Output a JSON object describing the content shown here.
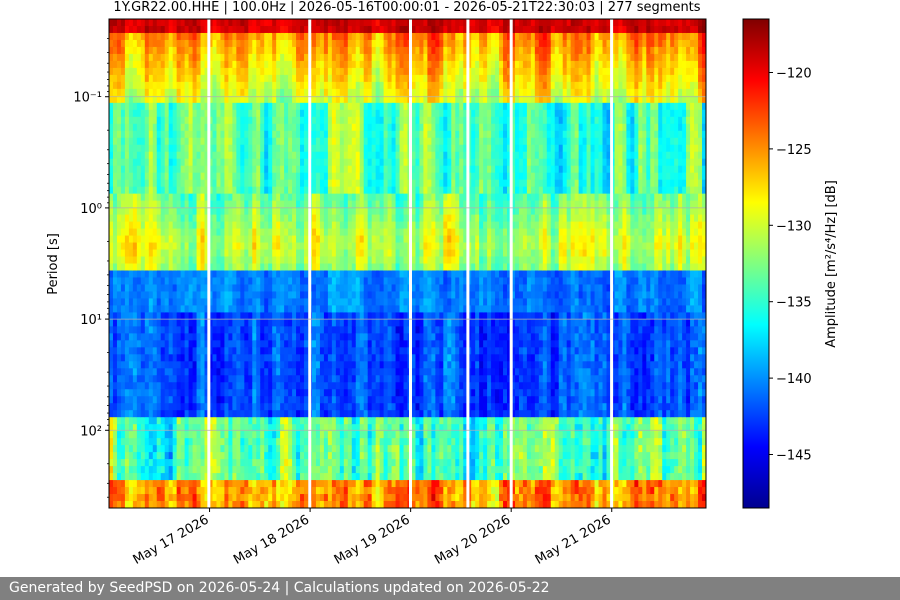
{
  "chart_data": {
    "type": "heatmap",
    "title": "1Y.GR22.00.HHE | 100.0Hz | 2026-05-16T00:00:01 - 2026-05-21T22:30:03 | 277 segments",
    "ylabel": "Period [s]",
    "xlabel": "",
    "y_scale": "log",
    "y_inverted": true,
    "ylim": [
      0.02,
      500
    ],
    "y_ticks": [
      {
        "value": 0.1,
        "label": "10⁻¹"
      },
      {
        "value": 1,
        "label": "10⁰"
      },
      {
        "value": 10,
        "label": "10¹"
      },
      {
        "value": 100,
        "label": "10²"
      }
    ],
    "xlim": [
      "2026-05-16T00:00:01",
      "2026-05-21T22:30:03"
    ],
    "x_ticks": [
      {
        "value": "2026-05-17T00:00:00",
        "label": "May 17 2026"
      },
      {
        "value": "2026-05-18T00:00:00",
        "label": "May 18 2026"
      },
      {
        "value": "2026-05-19T00:00:00",
        "label": "May 19 2026"
      },
      {
        "value": "2026-05-20T00:00:00",
        "label": "May 20 2026"
      },
      {
        "value": "2026-05-21T00:00:00",
        "label": "May 21 2026"
      }
    ],
    "data_gaps": [
      "2026-05-16T23:50:00",
      "2026-05-17T23:55:00",
      "2026-05-18T23:58:00",
      "2026-05-19T13:40:00",
      "2026-05-20T00:00:00",
      "2026-05-20T23:58:00"
    ],
    "horizontal_grid": true,
    "colormap": "jet",
    "colorbar": {
      "label": "Amplitude [m²/s⁴/Hz] [dB]",
      "range": [
        -148.5,
        -116.5
      ],
      "ticks": [
        {
          "value": -120,
          "label": "−120"
        },
        {
          "value": -125,
          "label": "−125"
        },
        {
          "value": -130,
          "label": "−130"
        },
        {
          "value": -135,
          "label": "−135"
        },
        {
          "value": -140,
          "label": "−140"
        },
        {
          "value": -145,
          "label": "−145"
        }
      ]
    }
  },
  "footer": {
    "text": "Generated by SeedPSD on 2026-05-24 | Calculations updated on 2026-05-22"
  }
}
